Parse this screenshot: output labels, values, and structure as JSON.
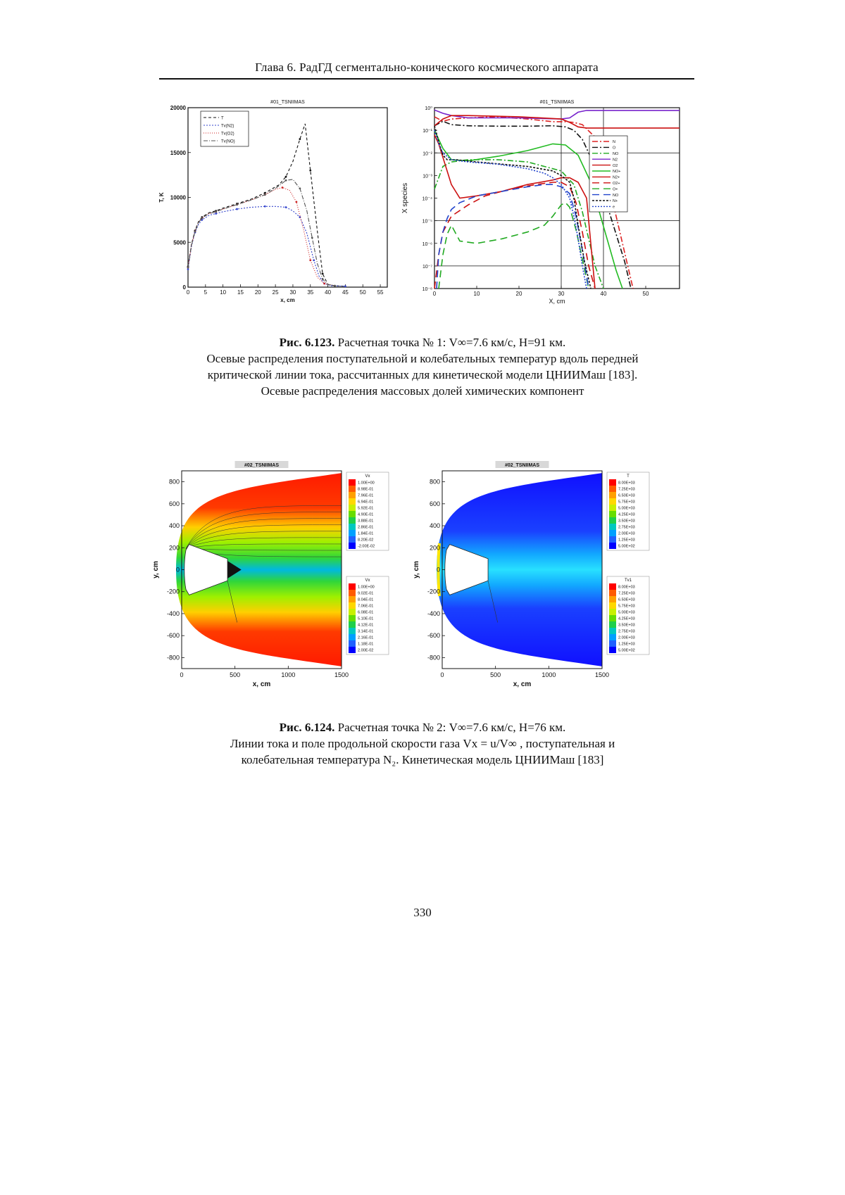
{
  "page": {
    "running_head": "Глава 6. РадГД сегментально-конического космического аппарата",
    "page_number": "330"
  },
  "fig123": {
    "label": "Рис. 6.123.",
    "title_line": "Расчетная точка № 1: V∞=7.6 км/с, H=91 км.",
    "text_lines": [
      "Осевые распределения поступательной и колебательных температур вдоль передней",
      "критической линии тока, рассчитанных для кинетической модели ЦНИИМаш [183].",
      "Осевые распределения массовых долей химических компонент"
    ]
  },
  "fig124": {
    "label": "Рис. 6.124.",
    "title_line": "Расчетная точка № 2: V∞=7.6 км/с, H=76 км.",
    "text_lines": [
      "Линии тока и поле продольной скорости газа Vx = u/V∞ , поступательная и",
      "колебательная температура N₂. Кинетическая модель ЦНИИМаш [183]"
    ]
  },
  "chart_data": [
    {
      "type": "line",
      "title": "#01_TSNIIMAS",
      "xlabel": "x, cm",
      "ylabel": "T, K",
      "xlim": [
        0,
        57
      ],
      "ylim": [
        0,
        20000
      ],
      "xticks": [
        "0",
        "5",
        "10",
        "15",
        "20",
        "25",
        "30",
        "35",
        "40",
        "45",
        "50",
        "55"
      ],
      "yticks": [
        "0",
        "5000",
        "10000",
        "15000",
        "20000"
      ],
      "legend_position": "top-left",
      "series": [
        {
          "name": "T",
          "color": "#111111",
          "dash": "4 3",
          "x": [
            0,
            1,
            2,
            3,
            4,
            6,
            8,
            10,
            14,
            18,
            22,
            26,
            28,
            30,
            32,
            33.5,
            35,
            37,
            38.5,
            40,
            42,
            45
          ],
          "y": [
            2300,
            4800,
            6300,
            7300,
            7800,
            8300,
            8500,
            8800,
            9300,
            9800,
            10500,
            11400,
            12300,
            14000,
            16500,
            18200,
            13000,
            6200,
            1500,
            300,
            150,
            100
          ]
        },
        {
          "name": "Tv(N2)",
          "color": "#3344cc",
          "dash": "2 2",
          "x": [
            0,
            1,
            2,
            3,
            4,
            6,
            8,
            10,
            14,
            18,
            22,
            25,
            28,
            30,
            32,
            34,
            36,
            37.5,
            39,
            41,
            45
          ],
          "y": [
            2000,
            4600,
            6100,
            7000,
            7500,
            8000,
            8200,
            8400,
            8700,
            8900,
            9000,
            9000,
            8900,
            8500,
            7800,
            6000,
            3000,
            1200,
            400,
            150,
            100
          ]
        },
        {
          "name": "Tv(O2)",
          "color": "#cc2222",
          "dash": "1 2",
          "x": [
            0,
            1,
            2,
            3,
            4,
            6,
            8,
            10,
            14,
            18,
            22,
            25,
            27,
            29,
            31,
            33,
            35,
            37,
            39,
            42
          ],
          "y": [
            2200,
            4700,
            6200,
            7200,
            7700,
            8200,
            8400,
            8700,
            9200,
            9700,
            10300,
            10900,
            11100,
            10800,
            9500,
            6500,
            3000,
            1100,
            400,
            150
          ]
        },
        {
          "name": "Tv(NO)",
          "color": "#555555",
          "dash": "6 2 1 2",
          "x": [
            0,
            1,
            2,
            3,
            4,
            6,
            8,
            10,
            14,
            18,
            22,
            25,
            28,
            30,
            32,
            34,
            35.5,
            37,
            38.5,
            40,
            42
          ],
          "y": [
            2200,
            4700,
            6200,
            7200,
            7700,
            8200,
            8400,
            8700,
            9200,
            9700,
            10300,
            11000,
            11900,
            12000,
            11000,
            8500,
            5500,
            2600,
            900,
            300,
            150
          ]
        }
      ]
    },
    {
      "type": "line",
      "title": "#01_TSNIIMAS",
      "xlabel": "X, cm",
      "ylabel": "X species",
      "log_y": true,
      "xlim": [
        0,
        58
      ],
      "ylim_exp": [
        -8,
        0
      ],
      "xticks": [
        "0",
        "10",
        "20",
        "30",
        "40",
        "50"
      ],
      "ytick_labels": [
        "10⁰",
        "10⁻¹",
        "10⁻²",
        "10⁻³",
        "10⁻⁴",
        "10⁻⁵",
        "10⁻⁶",
        "10⁻⁷",
        "10⁻⁸"
      ],
      "legend_position": "right",
      "series": [
        {
          "name": "N",
          "color": "#dd2222",
          "dash": "8 3 2 3",
          "x": [
            0,
            2,
            4,
            8,
            15,
            22,
            28,
            31,
            33,
            35,
            38,
            40,
            42,
            44,
            46,
            47
          ],
          "le": [
            -0.4,
            -0.6,
            -0.5,
            -0.45,
            -0.4,
            -0.5,
            -0.62,
            -0.62,
            -0.65,
            -0.75,
            -1.3,
            -2.5,
            -4.0,
            -5.6,
            -7.2,
            -8
          ]
        },
        {
          "name": "O",
          "color": "#111111",
          "dash": "8 3 2 3",
          "x": [
            0,
            2,
            4,
            8,
            15,
            22,
            28,
            31,
            33,
            35,
            37,
            39,
            41,
            43,
            45,
            46.5
          ],
          "le": [
            -0.8,
            -0.6,
            -0.75,
            -0.8,
            -0.82,
            -0.82,
            -0.8,
            -0.85,
            -1.0,
            -1.4,
            -2.2,
            -3.2,
            -4.4,
            -5.6,
            -6.8,
            -8
          ]
        },
        {
          "name": "NO",
          "color": "#22aa22",
          "dash": "8 3 2 3",
          "x": [
            0,
            2,
            4,
            8,
            15,
            22,
            26,
            30,
            33,
            35,
            36.5,
            38,
            40
          ],
          "le": [
            -3.6,
            -2.6,
            -2.4,
            -2.3,
            -2.3,
            -2.4,
            -2.6,
            -2.8,
            -3.4,
            -4.6,
            -5.8,
            -7.0,
            -8
          ]
        },
        {
          "name": "N2",
          "color": "#7722cc",
          "dash": "",
          "x": [
            0,
            2,
            4,
            8,
            20,
            30,
            32,
            34,
            36,
            40,
            50,
            58
          ],
          "le": [
            -0.1,
            -0.25,
            -0.35,
            -0.45,
            -0.45,
            -0.5,
            -0.45,
            -0.2,
            -0.12,
            -0.12,
            -0.12,
            -0.12
          ]
        },
        {
          "name": "O2",
          "color": "#cc1111",
          "dash": "",
          "x": [
            0,
            2,
            4,
            8,
            20,
            30,
            32,
            34,
            36,
            38,
            40,
            45,
            50,
            58
          ],
          "le": [
            -0.8,
            -0.5,
            -0.35,
            -0.35,
            -0.4,
            -0.5,
            -0.65,
            -0.85,
            -0.9,
            -0.9,
            -0.9,
            -0.9,
            -0.9,
            -0.9
          ]
        },
        {
          "name": "NO+",
          "color": "#22bb22",
          "dash": "",
          "x": [
            0,
            1,
            2,
            4,
            8,
            15,
            22,
            28,
            31,
            34,
            37,
            39,
            41,
            43,
            44.5
          ],
          "le": [
            -1.0,
            -1.4,
            -1.8,
            -2.3,
            -2.35,
            -2.15,
            -1.9,
            -1.6,
            -1.65,
            -2.1,
            -3.3,
            -4.6,
            -5.9,
            -7.2,
            -8
          ]
        },
        {
          "name": "N2+",
          "color": "#cc1111",
          "dash": "",
          "x": [
            0,
            1,
            2,
            4,
            6,
            10,
            16,
            22,
            28,
            30,
            32,
            34,
            36,
            38
          ],
          "le": [
            -1.2,
            -1.6,
            -2.2,
            -3.4,
            -4.0,
            -3.9,
            -3.7,
            -3.4,
            -3.2,
            -3.1,
            -3.1,
            -3.3,
            -4.0,
            -8
          ]
        },
        {
          "name": "O2+",
          "color": "#cc1111",
          "dash": "10 6",
          "x": [
            0,
            1,
            2,
            4,
            8,
            12,
            18,
            24,
            28,
            30,
            32,
            33.5,
            35,
            36.5,
            38
          ],
          "le": [
            -8,
            -6.5,
            -5.5,
            -4.8,
            -4.3,
            -3.9,
            -3.6,
            -3.4,
            -3.3,
            -3.3,
            -3.5,
            -4.2,
            -5.5,
            -7.0,
            -8
          ]
        },
        {
          "name": "O+",
          "color": "#22aa22",
          "dash": "10 6",
          "x": [
            1,
            2,
            3,
            4,
            6,
            10,
            16,
            22,
            26,
            28,
            30,
            31,
            32,
            33.5,
            35,
            36.5
          ],
          "le": [
            -8,
            -6.5,
            -5.6,
            -5.2,
            -5.9,
            -6.0,
            -5.8,
            -5.5,
            -5.2,
            -4.8,
            -4.3,
            -4.2,
            -4.4,
            -5.4,
            -6.7,
            -8
          ]
        },
        {
          "name": "NO",
          "color": "#2244cc",
          "dash": "10 6",
          "x": [
            0.5,
            1,
            2,
            3,
            4,
            6,
            10,
            16,
            22,
            26,
            28,
            30,
            32,
            33.5,
            35,
            36.5
          ],
          "le": [
            -8,
            -6.5,
            -5.5,
            -4.9,
            -4.5,
            -4.2,
            -3.9,
            -3.7,
            -3.5,
            -3.4,
            -3.4,
            -3.5,
            -3.8,
            -4.8,
            -6.3,
            -8
          ]
        },
        {
          "name": "N+",
          "color": "#111111",
          "dash": "3 2",
          "x": [
            0,
            1,
            2,
            3,
            5,
            10,
            16,
            22,
            28,
            30,
            32,
            33,
            34,
            35.5,
            37
          ],
          "le": [
            -0.8,
            -1.5,
            -2.1,
            -2.3,
            -2.3,
            -2.4,
            -2.5,
            -2.6,
            -2.8,
            -3.0,
            -3.3,
            -4.0,
            -5.2,
            -6.8,
            -8
          ]
        },
        {
          "name": "e",
          "color": "#2244cc",
          "dash": "2 2",
          "x": [
            0,
            1,
            2,
            4,
            8,
            15,
            22,
            26,
            28,
            30,
            32,
            33,
            34,
            35,
            36
          ],
          "le": [
            -1.0,
            -1.6,
            -2.0,
            -2.3,
            -2.4,
            -2.5,
            -2.7,
            -2.9,
            -3.1,
            -3.4,
            -4.0,
            -4.8,
            -5.8,
            -7.0,
            -8
          ]
        }
      ]
    },
    {
      "type": "heatmap",
      "title": "#02_TSNIIMAS",
      "xlabel": "x, cm",
      "ylabel": "y, cm",
      "xlim": [
        0,
        1500
      ],
      "ylim": [
        -900,
        900
      ],
      "xticks": [
        "0",
        "500",
        "1000",
        "1500"
      ],
      "yticks": [
        "800",
        "600",
        "400",
        "200",
        "0",
        "-200",
        "-400",
        "-600",
        "-800"
      ],
      "legend_top": {
        "title": "Vx",
        "labels": [
          "1.00E+00",
          "8.98E-01",
          "7.96E-01",
          "6.94E-01",
          "5.92E-01",
          "4.90E-01",
          "3.88E-01",
          "2.86E-01",
          "1.84E-01",
          "8.20E-02",
          "-2.00E-02"
        ]
      },
      "legend_bottom": {
        "title": "Vx",
        "labels": [
          "1.00E+00",
          "9.02E-01",
          "8.04E-01",
          "7.06E-01",
          "6.08E-01",
          "5.10E-01",
          "4.12E-01",
          "3.14E-01",
          "2.16E-01",
          "1.18E-01",
          "2.00E-02"
        ]
      }
    },
    {
      "type": "heatmap",
      "title": "#02_TSNIIMAS",
      "xlabel": "x, cm",
      "ylabel": "y, cm",
      "xlim": [
        0,
        1500
      ],
      "ylim": [
        -900,
        900
      ],
      "xticks": [
        "0",
        "500",
        "1000",
        "1500"
      ],
      "yticks": [
        "800",
        "600",
        "400",
        "200",
        "0",
        "-200",
        "-400",
        "-600",
        "-800"
      ],
      "legend_top": {
        "title": "T",
        "labels": [
          "8.00E+03",
          "7.25E+03",
          "6.50E+03",
          "5.75E+03",
          "5.00E+03",
          "4.25E+03",
          "3.50E+03",
          "2.75E+03",
          "2.00E+03",
          "1.25E+03",
          "5.00E+02"
        ]
      },
      "legend_bottom": {
        "title": "Tv1",
        "labels": [
          "8.00E+03",
          "7.25E+03",
          "6.50E+03",
          "5.75E+03",
          "5.00E+03",
          "4.25E+03",
          "3.50E+03",
          "2.75E+03",
          "2.00E+03",
          "1.25E+03",
          "5.00E+02"
        ]
      }
    }
  ]
}
